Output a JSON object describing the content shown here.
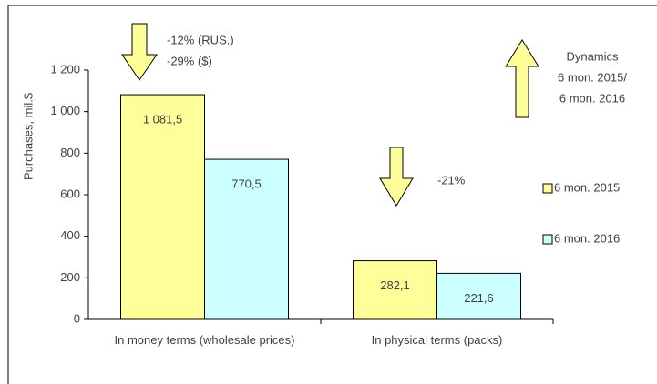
{
  "chart_data": {
    "type": "bar",
    "y_label": "Purchases, mil.$",
    "categories": [
      "In money terms (wholesale prices)",
      "In physical terms (packs)"
    ],
    "series": [
      {
        "name": "6 mon. 2015",
        "color": "#ffff99",
        "values": [
          1081.5,
          282.1
        ],
        "value_labels": [
          "1 081,5",
          "282,1"
        ]
      },
      {
        "name": "6 mon. 2016",
        "color": "#ccffff",
        "values": [
          770.5,
          221.6
        ],
        "value_labels": [
          "770,5",
          "221,6"
        ]
      }
    ],
    "ylim": [
      0,
      1200
    ],
    "yticks": [
      0,
      200,
      400,
      600,
      800,
      {
        "value": 1000,
        "label": "1 000"
      },
      {
        "value": 1200,
        "label": "1 200"
      }
    ],
    "annotations": [
      "-12% (RUS.)",
      "-29% ($)",
      "-21%",
      "Dynamics",
      "6 mon. 2015/",
      "6 mon. 2016"
    ],
    "legend": "right"
  }
}
